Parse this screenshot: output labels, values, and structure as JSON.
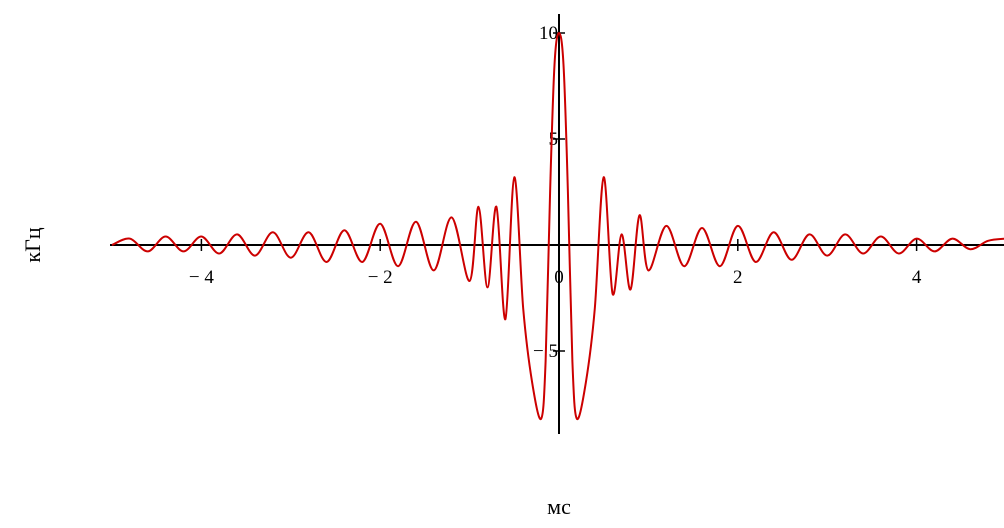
{
  "chart_data": {
    "type": "line",
    "title": "",
    "xlabel": "мс",
    "ylabel": "кГц",
    "xlim": [
      -5.0,
      5.0
    ],
    "ylim": [
      -10.5,
      11.3
    ],
    "grid": false,
    "line_color": "#cc0000",
    "axis_color": "#000000",
    "x_ticks": [
      -4,
      -2,
      0,
      2,
      4
    ],
    "x_tick_labels": [
      "− 4",
      "− 2",
      "0",
      "2",
      "4"
    ],
    "y_ticks": [
      10,
      5,
      -5
    ],
    "y_tick_labels": [
      "10",
      "5",
      "− 5"
    ],
    "series": [
      {
        "x": [
          -5.0,
          -4.8,
          -4.6,
          -4.4,
          -4.2,
          -4.0,
          -3.8,
          -3.6,
          -3.4,
          -3.2,
          -3.0,
          -2.8,
          -2.6,
          -2.4,
          -2.2,
          -2.0,
          -1.8,
          -1.6,
          -1.4,
          -1.2,
          -1.0,
          -0.9,
          -0.8,
          -0.7,
          -0.6,
          -0.5,
          -0.4,
          -0.3,
          -0.2,
          -0.15,
          -0.1,
          -0.05,
          0.0,
          0.05,
          0.1,
          0.15,
          0.2,
          0.3,
          0.4,
          0.5,
          0.6,
          0.7,
          0.8,
          0.9,
          1.0,
          1.2,
          1.4,
          1.6,
          1.8,
          2.0,
          2.2,
          2.4,
          2.6,
          2.8,
          3.0,
          3.2,
          3.4,
          3.6,
          3.8,
          4.0,
          4.2,
          4.4,
          4.6,
          4.8,
          5.0
        ],
        "values": [
          0.0,
          0.3,
          -0.3,
          0.4,
          -0.3,
          0.4,
          -0.4,
          0.5,
          -0.5,
          0.6,
          -0.6,
          0.6,
          -0.8,
          0.7,
          -0.8,
          1.0,
          -1.0,
          1.1,
          -1.2,
          1.3,
          -1.7,
          1.8,
          -2.0,
          1.8,
          -3.5,
          3.2,
          -3.0,
          -6.5,
          -8.2,
          -5.5,
          2.5,
          8.5,
          10.0,
          8.5,
          2.5,
          -5.5,
          -8.2,
          -6.5,
          -3.0,
          3.2,
          -2.3,
          0.5,
          -2.1,
          1.4,
          -1.2,
          0.9,
          -1.0,
          0.8,
          -1.0,
          0.9,
          -0.8,
          0.6,
          -0.7,
          0.5,
          -0.5,
          0.5,
          -0.4,
          0.4,
          -0.4,
          0.3,
          -0.3,
          0.3,
          -0.2,
          0.2,
          0.3
        ]
      }
    ]
  }
}
